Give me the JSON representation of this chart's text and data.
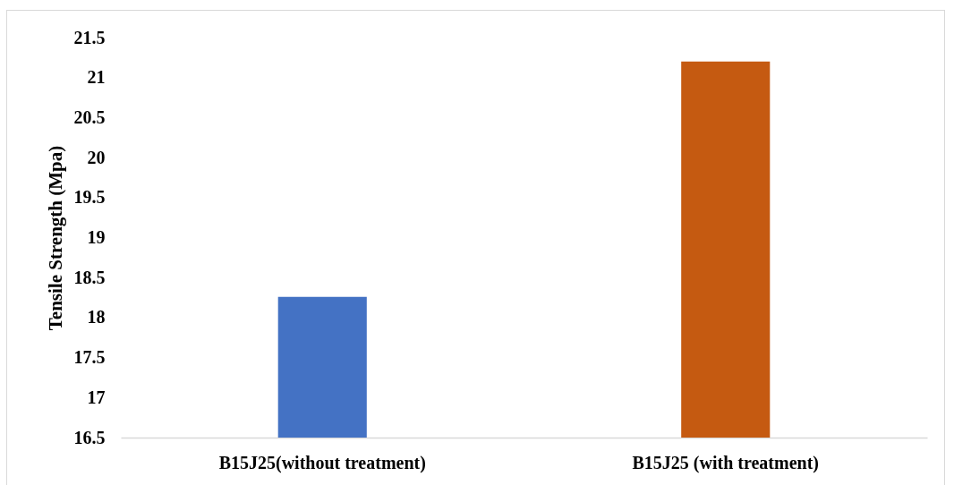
{
  "chart_data": {
    "type": "bar",
    "ylabel": "Tensile Strength (Mpa)",
    "categories": [
      "B15J25(without treatment)",
      "B15J25 (with treatment)"
    ],
    "values": [
      18.26,
      21.2
    ],
    "colors": [
      "#4472c4",
      "#c55a11"
    ],
    "ylim": [
      16.5,
      21.5
    ],
    "yticks": [
      16.5,
      17,
      17.5,
      18,
      18.5,
      19,
      19.5,
      20,
      20.5,
      21,
      21.5
    ]
  }
}
